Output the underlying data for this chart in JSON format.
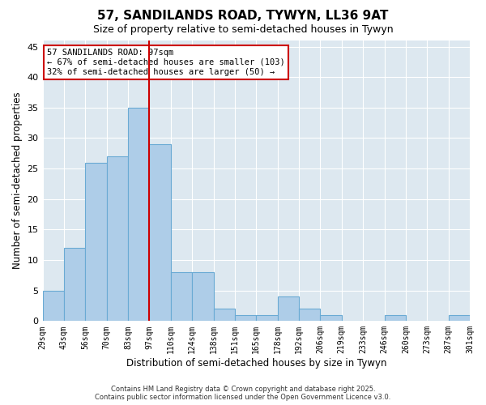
{
  "title1": "57, SANDILANDS ROAD, TYWYN, LL36 9AT",
  "title2": "Size of property relative to semi-detached houses in Tywyn",
  "xlabel": "Distribution of semi-detached houses by size in Tywyn",
  "ylabel": "Number of semi-detached properties",
  "bin_labels": [
    "29sqm",
    "43sqm",
    "56sqm",
    "70sqm",
    "83sqm",
    "97sqm",
    "110sqm",
    "124sqm",
    "138sqm",
    "151sqm",
    "165sqm",
    "178sqm",
    "192sqm",
    "206sqm",
    "219sqm",
    "233sqm",
    "246sqm",
    "260sqm",
    "273sqm",
    "287sqm",
    "301sqm"
  ],
  "values": [
    5,
    12,
    26,
    27,
    35,
    29,
    8,
    8,
    2,
    1,
    1,
    4,
    2,
    1,
    0,
    0,
    1,
    0,
    0,
    1
  ],
  "bar_color": "#aecde8",
  "bar_edge_color": "#6aaad4",
  "highlight_line_color": "#cc0000",
  "highlight_bin_index": 5,
  "annotation_title": "57 SANDILANDS ROAD: 97sqm",
  "annotation_line1": "← 67% of semi-detached houses are smaller (103)",
  "annotation_line2": "32% of semi-detached houses are larger (50) →",
  "annotation_box_color": "#cc0000",
  "ylim": [
    0,
    46
  ],
  "yticks": [
    0,
    5,
    10,
    15,
    20,
    25,
    30,
    35,
    40,
    45
  ],
  "background_color": "#dde8f0",
  "footer1": "Contains HM Land Registry data © Crown copyright and database right 2025.",
  "footer2": "Contains public sector information licensed under the Open Government Licence v3.0."
}
